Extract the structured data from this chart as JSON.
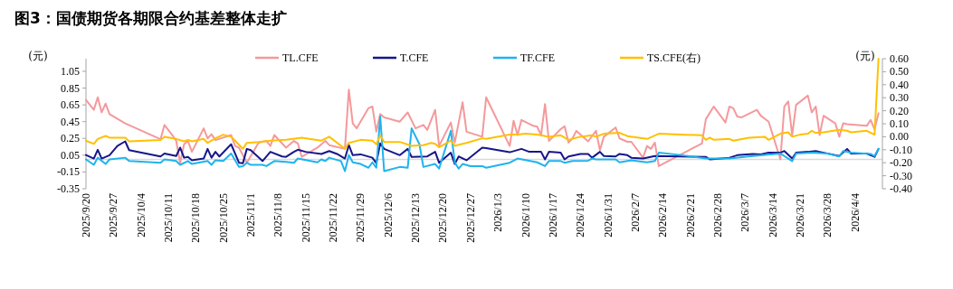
{
  "chart_data": {
    "type": "line",
    "title": "图3：国债期货各期限合约基差整体走扩",
    "ylabel": "(元)",
    "y2label": "(元)",
    "legend": "top",
    "grid": false,
    "marker": "none",
    "line_style": "solid",
    "xlim": [
      "2025-09-20",
      "2026-04-11"
    ],
    "ylim": [
      -0.35,
      1.2
    ],
    "y2lim": [
      -0.4,
      0.6
    ],
    "xticks": [
      {
        "value": "2025-09-20",
        "label": "2025/9/20"
      },
      {
        "value": "2025-09-27",
        "label": "2025/9/27"
      },
      {
        "value": "2025-10-04",
        "label": "2025/10/4"
      },
      {
        "value": "2025-10-11",
        "label": "2025/10/11"
      },
      {
        "value": "2025-10-18",
        "label": "2025/10/18"
      },
      {
        "value": "2025-10-25",
        "label": "2025/10/25"
      },
      {
        "value": "2025-11-01",
        "label": "2025/11/1"
      },
      {
        "value": "2025-11-08",
        "label": "2025/11/8"
      },
      {
        "value": "2025-11-15",
        "label": "2025/11/15"
      },
      {
        "value": "2025-11-22",
        "label": "2025/11/22"
      },
      {
        "value": "2025-11-29",
        "label": "2025/11/29"
      },
      {
        "value": "2025-12-06",
        "label": "2025/12/6"
      },
      {
        "value": "2025-12-13",
        "label": "2025/12/13"
      },
      {
        "value": "2025-12-20",
        "label": "2025/12/20"
      },
      {
        "value": "2025-12-27",
        "label": "2025/12/27"
      },
      {
        "value": "2026-01-03",
        "label": "2026/1/3"
      },
      {
        "value": "2026-01-10",
        "label": "2026/1/10"
      },
      {
        "value": "2026-01-17",
        "label": "2026/1/17"
      },
      {
        "value": "2026-01-24",
        "label": "2026/1/24"
      },
      {
        "value": "2026-01-31",
        "label": "2026/1/31"
      },
      {
        "value": "2026-02-07",
        "label": "2026/2/7"
      },
      {
        "value": "2026-02-14",
        "label": "2026/2/14"
      },
      {
        "value": "2026-02-21",
        "label": "2026/2/21"
      },
      {
        "value": "2026-02-28",
        "label": "2026/2/28"
      },
      {
        "value": "2026-03-07",
        "label": "2026/3/7"
      },
      {
        "value": "2026-03-14",
        "label": "2026/3/14"
      },
      {
        "value": "2026-03-21",
        "label": "2026/3/21"
      },
      {
        "value": "2026-03-28",
        "label": "2026/3/28"
      },
      {
        "value": "2026-04-04",
        "label": "2026/4/4"
      }
    ],
    "yticks": [
      1.05,
      0.85,
      0.65,
      0.45,
      0.25,
      0.05,
      -0.15,
      -0.35
    ],
    "y2ticks": [
      {
        "value": 0.6,
        "label": "0.60"
      },
      {
        "value": 0.5,
        "label": "0.50"
      },
      {
        "value": 0.4,
        "label": "0.40"
      },
      {
        "value": 0.3,
        "label": "0.30"
      },
      {
        "value": 0.2,
        "label": "0.20"
      },
      {
        "value": 0.1,
        "label": "0.10"
      },
      {
        "value": 0,
        "label": "0.00"
      },
      {
        "value": -0.1,
        "label": "-0.10"
      },
      {
        "value": -0.2,
        "label": "-0.20"
      },
      {
        "value": -0.3,
        "label": "-0.30"
      },
      {
        "value": -0.4,
        "label": "-0.40"
      }
    ],
    "ref_lines": [
      {
        "axis": "y",
        "value": 0,
        "color": "#d9d9d9"
      }
    ],
    "series": [
      {
        "name": "TL.CFE",
        "color": "#f4999b",
        "x": [
          "2025-09-20",
          "2025-09-22",
          "2025-09-23",
          "2025-09-24",
          "2025-09-25",
          "2025-09-26",
          "2025-09-30",
          "2025-10-09",
          "2025-10-10",
          "2025-10-12",
          "2025-10-13",
          "2025-10-14",
          "2025-10-15",
          "2025-10-16",
          "2025-10-17",
          "2025-10-20",
          "2025-10-21",
          "2025-10-22",
          "2025-10-23",
          "2025-10-27",
          "2025-10-28",
          "2025-10-29",
          "2025-10-31",
          "2025-11-03",
          "2025-11-05",
          "2025-11-06",
          "2025-11-07",
          "2025-11-10",
          "2025-11-12",
          "2025-11-13",
          "2025-11-14",
          "2025-11-18",
          "2025-11-19",
          "2025-11-20",
          "2025-11-21",
          "2025-11-25",
          "2025-11-26",
          "2025-11-27",
          "2025-11-28",
          "2025-12-01",
          "2025-12-02",
          "2025-12-03",
          "2025-12-04",
          "2025-12-05",
          "2025-12-09",
          "2025-12-11",
          "2025-12-13",
          "2025-12-15",
          "2025-12-16",
          "2025-12-18",
          "2025-12-19",
          "2025-12-22",
          "2025-12-23",
          "2025-12-25",
          "2025-12-26",
          "2025-12-30",
          "2025-12-31",
          "2026-01-06",
          "2026-01-07",
          "2026-01-08",
          "2026-01-09",
          "2026-01-12",
          "2026-01-13",
          "2026-01-14",
          "2026-01-15",
          "2026-01-16",
          "2026-01-19",
          "2026-01-20",
          "2026-01-21",
          "2026-01-22",
          "2026-01-23",
          "2026-01-26",
          "2026-01-28",
          "2026-01-29",
          "2026-01-30",
          "2026-02-02",
          "2026-02-03",
          "2026-02-05",
          "2026-02-06",
          "2026-02-09",
          "2026-02-10",
          "2026-02-11",
          "2026-02-12",
          "2026-02-13",
          "2026-02-24",
          "2026-02-25",
          "2026-02-27",
          "2026-03-02",
          "2026-03-03",
          "2026-03-04",
          "2026-03-05",
          "2026-03-06",
          "2026-03-10",
          "2026-03-11",
          "2026-03-13",
          "2026-03-16",
          "2026-03-17",
          "2026-03-18",
          "2026-03-19",
          "2026-03-20",
          "2026-03-23",
          "2026-03-24",
          "2026-03-25",
          "2026-03-26",
          "2026-03-27",
          "2026-03-30",
          "2026-03-31",
          "2026-04-01",
          "2026-04-02",
          "2026-04-07",
          "2026-04-08",
          "2026-04-09",
          "2026-04-10"
        ],
        "values": [
          0.71,
          0.59,
          0.74,
          0.56,
          0.665,
          0.54,
          0.43,
          0.24,
          0.41,
          0.29,
          0.22,
          -0.04,
          0.18,
          0.22,
          0.09,
          0.37,
          0.25,
          0.3,
          0.23,
          0.29,
          0.16,
          0.14,
          -0.04,
          0.2,
          0.22,
          0.16,
          0.29,
          0.14,
          0.22,
          0.19,
          0.03,
          0.14,
          0.18,
          0.22,
          0.17,
          0.125,
          0.83,
          0.43,
          0.37,
          0.61,
          0.63,
          0.33,
          0.54,
          0.5,
          0.45,
          0.56,
          0.37,
          0.41,
          0.35,
          0.59,
          0.16,
          0.44,
          0.2,
          0.68,
          0.33,
          0.27,
          0.74,
          0.16,
          0.46,
          0.29,
          0.47,
          0.4,
          0.39,
          0.29,
          0.66,
          0.22,
          0.36,
          0.395,
          0.2,
          0.25,
          0.34,
          0.215,
          0.34,
          0.11,
          0.27,
          0.38,
          0.25,
          0.21,
          0.21,
          0.02,
          0.16,
          0.125,
          0.2,
          -0.08,
          0.19,
          0.48,
          0.63,
          0.44,
          0.63,
          0.61,
          0.51,
          0.5,
          0.59,
          0.52,
          0.45,
          0.0,
          0.63,
          0.69,
          0.29,
          0.65,
          0.76,
          0.56,
          0.63,
          0.29,
          0.52,
          0.43,
          0.27,
          0.43,
          0.42,
          0.4,
          0.47,
          0.36,
          0.55
        ]
      },
      {
        "name": "T.CFE",
        "color": "#16168a",
        "x": [
          "2025-09-20",
          "2025-09-22",
          "2025-09-23",
          "2025-09-24",
          "2025-09-26",
          "2025-09-28",
          "2025-09-30",
          "2025-10-01",
          "2025-10-09",
          "2025-10-10",
          "2025-10-13",
          "2025-10-14",
          "2025-10-15",
          "2025-10-16",
          "2025-10-17",
          "2025-10-20",
          "2025-10-21",
          "2025-10-22",
          "2025-10-23",
          "2025-10-24",
          "2025-10-27",
          "2025-10-29",
          "2025-10-30",
          "2025-10-31",
          "2025-11-01",
          "2025-11-04",
          "2025-11-06",
          "2025-11-09",
          "2025-11-10",
          "2025-11-12",
          "2025-11-13",
          "2025-11-15",
          "2025-11-19",
          "2025-11-21",
          "2025-11-23",
          "2025-11-25",
          "2025-11-26",
          "2025-11-27",
          "2025-11-29",
          "2025-12-02",
          "2025-12-03",
          "2025-12-04",
          "2025-12-05",
          "2025-12-09",
          "2025-12-11",
          "2025-12-12",
          "2025-12-16",
          "2025-12-18",
          "2025-12-19",
          "2025-12-22",
          "2025-12-23",
          "2025-12-24",
          "2025-12-26",
          "2025-12-30",
          "2025-12-31",
          "2026-01-06",
          "2026-01-09",
          "2026-01-11",
          "2026-01-14",
          "2026-01-15",
          "2026-01-16",
          "2026-01-19",
          "2026-01-20",
          "2026-01-21",
          "2026-01-24",
          "2026-01-26",
          "2026-01-27",
          "2026-01-29",
          "2026-01-30",
          "2026-02-02",
          "2026-02-03",
          "2026-02-05",
          "2026-02-06",
          "2026-02-09",
          "2026-02-12",
          "2026-02-25",
          "2026-02-26",
          "2026-03-03",
          "2026-03-05",
          "2026-03-09",
          "2026-03-11",
          "2026-03-13",
          "2026-03-16",
          "2026-03-17",
          "2026-03-19",
          "2026-03-20",
          "2026-03-23",
          "2026-03-25",
          "2026-03-26",
          "2026-03-31",
          "2026-04-02",
          "2026-04-03",
          "2026-04-07",
          "2026-04-09",
          "2026-04-10"
        ],
        "values": [
          0.053,
          0.01,
          0.115,
          0.01,
          0.05,
          0.16,
          0.215,
          0.11,
          0.035,
          0.07,
          0.04,
          0.14,
          0.02,
          0.03,
          -0.01,
          0.01,
          0.125,
          0.02,
          0.09,
          0.035,
          0.18,
          -0.04,
          -0.045,
          0.125,
          0.11,
          -0.02,
          0.09,
          0.035,
          0.03,
          0.09,
          0.115,
          0.09,
          0.065,
          0.1,
          0.065,
          0.01,
          0.17,
          0.05,
          0.06,
          0.02,
          -0.045,
          0.19,
          0.125,
          0.05,
          0.125,
          0.03,
          0.035,
          0.09,
          -0.04,
          0.08,
          -0.055,
          0.035,
          -0.01,
          0.14,
          0.135,
          0.085,
          0.125,
          0.09,
          0.09,
          0.0,
          0.09,
          0.08,
          0.0,
          0.035,
          0.065,
          0.065,
          0.02,
          0.09,
          0.04,
          0.035,
          0.065,
          0.05,
          0.02,
          0.01,
          0.04,
          0.03,
          0.0,
          0.02,
          0.05,
          0.065,
          0.06,
          0.08,
          0.08,
          0.1,
          0.01,
          0.08,
          0.09,
          0.1,
          0.09,
          0.04,
          0.125,
          0.07,
          0.07,
          0.03,
          0.125
        ]
      },
      {
        "name": "TF.CFE",
        "color": "#1fb3ee",
        "x": [
          "2025-09-20",
          "2025-09-22",
          "2025-09-23",
          "2025-09-25",
          "2025-09-26",
          "2025-09-30",
          "2025-10-01",
          "2025-10-09",
          "2025-10-10",
          "2025-10-13",
          "2025-10-14",
          "2025-10-16",
          "2025-10-17",
          "2025-10-21",
          "2025-10-22",
          "2025-10-23",
          "2025-10-25",
          "2025-10-27",
          "2025-10-29",
          "2025-10-30",
          "2025-10-31",
          "2025-11-01",
          "2025-11-04",
          "2025-11-05",
          "2025-11-07",
          "2025-11-10",
          "2025-11-12",
          "2025-11-13",
          "2025-11-18",
          "2025-11-19",
          "2025-11-20",
          "2025-11-21",
          "2025-11-24",
          "2025-11-25",
          "2025-11-26",
          "2025-11-27",
          "2025-11-29",
          "2025-12-01",
          "2025-12-02",
          "2025-12-03",
          "2025-12-04",
          "2025-12-05",
          "2025-12-09",
          "2025-12-11",
          "2025-12-12",
          "2025-12-14",
          "2025-12-15",
          "2025-12-18",
          "2025-12-19",
          "2025-12-22",
          "2025-12-23",
          "2025-12-24",
          "2025-12-25",
          "2025-12-27",
          "2025-12-30",
          "2025-12-31",
          "2026-01-06",
          "2026-01-08",
          "2026-01-13",
          "2026-01-15",
          "2026-01-16",
          "2026-01-19",
          "2026-01-20",
          "2026-01-22",
          "2026-01-26",
          "2026-01-27",
          "2026-01-28",
          "2026-02-02",
          "2026-02-03",
          "2026-02-06",
          "2026-02-10",
          "2026-02-12",
          "2026-02-13",
          "2026-02-18",
          "2026-02-25",
          "2026-03-03",
          "2026-03-09",
          "2026-03-16",
          "2026-03-19",
          "2026-03-20",
          "2026-03-24",
          "2026-03-28",
          "2026-03-31",
          "2026-04-01",
          "2026-04-03",
          "2026-04-08",
          "2026-04-09",
          "2026-04-10"
        ],
        "values": [
          0.0,
          -0.065,
          0.02,
          -0.055,
          0.0,
          0.02,
          -0.02,
          -0.04,
          0.0,
          -0.02,
          -0.065,
          -0.02,
          -0.055,
          -0.02,
          -0.065,
          -0.01,
          -0.02,
          0.07,
          -0.09,
          -0.08,
          -0.04,
          -0.065,
          -0.065,
          -0.08,
          -0.02,
          -0.03,
          -0.04,
          0.01,
          -0.035,
          0.0,
          -0.02,
          0.02,
          -0.02,
          -0.14,
          0.05,
          -0.035,
          -0.055,
          -0.1,
          -0.035,
          -0.1,
          0.51,
          -0.14,
          -0.09,
          -0.1,
          0.37,
          0.18,
          -0.09,
          -0.055,
          -0.11,
          0.34,
          -0.035,
          -0.11,
          -0.055,
          -0.08,
          -0.08,
          -0.1,
          -0.04,
          0.01,
          -0.035,
          -0.08,
          -0.02,
          -0.02,
          -0.04,
          -0.02,
          -0.015,
          0.01,
          0.0,
          0.0,
          -0.035,
          -0.01,
          -0.035,
          -0.02,
          0.08,
          0.055,
          0.01,
          0.01,
          0.04,
          0.07,
          -0.02,
          0.07,
          0.08,
          0.07,
          0.035,
          0.1,
          0.08,
          0.065,
          0.04,
          0.125
        ]
      },
      {
        "name": "TS.CFE(右)",
        "color": "#ffc000",
        "axis": "y2",
        "x": [
          "2025-09-20",
          "2025-09-22",
          "2025-09-23",
          "2025-09-25",
          "2025-09-26",
          "2025-09-30",
          "2025-10-01",
          "2025-10-09",
          "2025-10-10",
          "2025-10-13",
          "2025-10-15",
          "2025-10-16",
          "2025-10-17",
          "2025-10-20",
          "2025-10-21",
          "2025-10-23",
          "2025-10-25",
          "2025-10-27",
          "2025-10-28",
          "2025-10-30",
          "2025-10-31",
          "2025-11-03",
          "2025-11-06",
          "2025-11-10",
          "2025-11-14",
          "2025-11-19",
          "2025-11-21",
          "2025-11-25",
          "2025-11-26",
          "2025-11-29",
          "2025-12-02",
          "2025-12-03",
          "2025-12-04",
          "2025-12-05",
          "2025-12-09",
          "2025-12-12",
          "2025-12-15",
          "2025-12-17",
          "2025-12-18",
          "2025-12-19",
          "2025-12-22",
          "2025-12-23",
          "2025-12-26",
          "2025-12-30",
          "2025-12-31",
          "2026-01-06",
          "2026-01-08",
          "2026-01-10",
          "2026-01-13",
          "2026-01-16",
          "2026-01-19",
          "2026-01-21",
          "2026-01-24",
          "2026-01-27",
          "2026-01-28",
          "2026-01-30",
          "2026-02-03",
          "2026-02-05",
          "2026-02-10",
          "2026-02-13",
          "2026-02-24",
          "2026-02-25",
          "2026-02-26",
          "2026-02-27",
          "2026-03-03",
          "2026-03-04",
          "2026-03-08",
          "2026-03-12",
          "2026-03-13",
          "2026-03-16",
          "2026-03-18",
          "2026-03-19",
          "2026-03-21",
          "2026-03-23",
          "2026-03-24",
          "2026-03-25",
          "2026-03-27",
          "2026-03-31",
          "2026-04-02",
          "2026-04-03",
          "2026-04-07",
          "2026-04-09",
          "2026-04-10"
        ],
        "values": [
          -0.03,
          -0.055,
          -0.017,
          0.006,
          -0.007,
          -0.007,
          -0.035,
          -0.025,
          0.0,
          -0.017,
          -0.035,
          -0.024,
          -0.035,
          -0.017,
          -0.047,
          -0.012,
          0.016,
          0.0,
          -0.03,
          -0.093,
          -0.047,
          -0.04,
          -0.03,
          -0.024,
          -0.007,
          -0.03,
          0.0,
          -0.093,
          -0.047,
          -0.024,
          -0.03,
          -0.058,
          0.011,
          -0.04,
          -0.04,
          -0.07,
          -0.065,
          -0.047,
          -0.054,
          -0.081,
          -0.03,
          -0.07,
          -0.047,
          -0.012,
          -0.017,
          0.016,
          0.016,
          0.023,
          0.016,
          0.0,
          0.011,
          -0.024,
          0.0,
          0.011,
          0.0,
          0.023,
          0.03,
          0.005,
          -0.017,
          0.023,
          0.011,
          -0.024,
          -0.007,
          -0.024,
          -0.017,
          -0.03,
          -0.007,
          0.0,
          -0.024,
          0.023,
          0.034,
          0.0,
          0.016,
          0.023,
          0.046,
          0.03,
          0.034,
          0.053,
          0.046,
          0.034,
          0.046,
          0.016,
          0.6
        ]
      }
    ]
  }
}
